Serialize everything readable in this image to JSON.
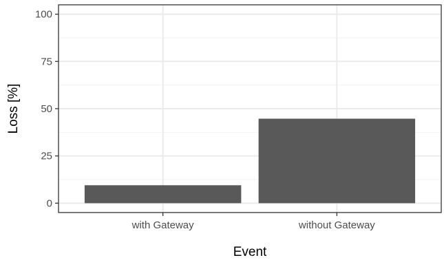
{
  "chart_data": {
    "type": "bar",
    "title": "",
    "xlabel": "Event",
    "ylabel": "Loss [%]",
    "categories": [
      "with Gateway",
      "without Gateway"
    ],
    "values": [
      9.5,
      44.7
    ],
    "ylim": [
      0,
      100
    ],
    "yticks": [
      "0",
      "25",
      "50",
      "75",
      "100"
    ],
    "grid": true,
    "legend": "none",
    "bar_color": "#595959"
  }
}
